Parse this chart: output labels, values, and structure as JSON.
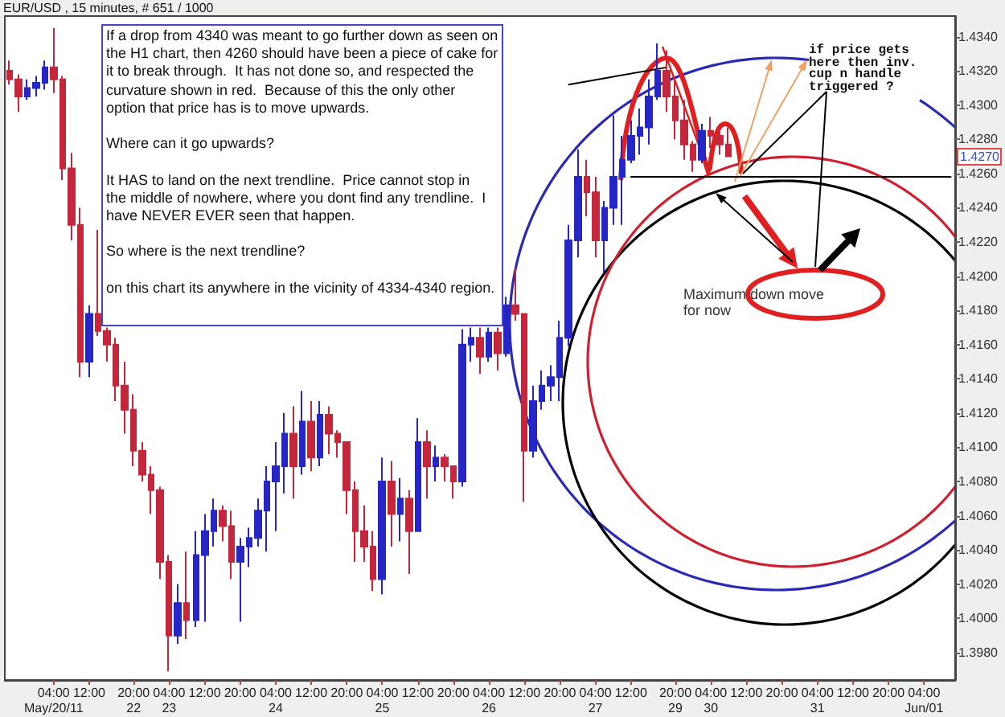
{
  "chart_data": {
    "type": "candlestick",
    "title": "EUR/USD , 15 minutes, # 651 / 1000",
    "categories": [
      null,
      null,
      null,
      null,
      null,
      "04:00\nMay/20/11",
      null,
      null,
      null,
      "12:00",
      null,
      null,
      null,
      null,
      "20:00\n22",
      null,
      null,
      null,
      "04:00\n23",
      null,
      null,
      null,
      "12:00",
      null,
      null,
      null,
      "20:00",
      null,
      null,
      null,
      "04:00\n24",
      null,
      null,
      null,
      "12:00",
      null,
      null,
      null,
      "20:00",
      null,
      null,
      null,
      "04:00\n25",
      null,
      null,
      null,
      "12:00",
      null,
      null,
      null,
      "20:00",
      null,
      null,
      null,
      "04:00\n26",
      null,
      null,
      null,
      "12:00",
      null,
      null,
      null,
      "20:00",
      null,
      null,
      null,
      "04:00\n27",
      null,
      null,
      null,
      "12:00",
      null,
      null,
      null,
      null,
      "20:00\n29",
      null,
      null,
      null,
      "04:00\n30",
      null,
      null,
      null,
      "12:00",
      null,
      null,
      null,
      "20:00",
      null,
      null,
      null,
      "04:00\n31",
      null,
      null,
      null,
      "12:00",
      null,
      null,
      null,
      "20:00",
      null,
      null,
      null,
      "04:00\nJun/01",
      null,
      null,
      null
    ],
    "series": [
      {
        "ohlc": [
          [
            1.432,
            1.4326,
            1.4312,
            1.4315
          ],
          [
            1.4315,
            1.4318,
            1.4296,
            1.4305
          ],
          [
            1.4305,
            1.4315,
            1.4303,
            1.431
          ],
          [
            1.431,
            1.4317,
            1.4305,
            1.4313
          ],
          [
            1.4313,
            1.4326,
            1.4309,
            1.4322
          ],
          [
            1.4322,
            1.4345,
            1.4307,
            1.4315
          ],
          [
            1.4315,
            1.4317,
            1.4256,
            1.4263
          ],
          [
            1.4263,
            1.4272,
            1.4221,
            1.423
          ],
          [
            1.423,
            1.424,
            1.4141,
            1.415
          ],
          [
            1.415,
            1.4183,
            1.4141,
            1.4178
          ],
          [
            1.4178,
            1.4227,
            1.4165,
            1.4168
          ],
          [
            1.4168,
            1.417,
            1.415,
            1.416
          ],
          [
            1.416,
            1.4164,
            1.4127,
            1.4136
          ],
          [
            1.4136,
            1.415,
            1.4108,
            1.4122
          ],
          [
            1.4122,
            1.4131,
            1.4089,
            1.4098
          ],
          [
            1.4098,
            1.4103,
            1.408,
            1.4084
          ],
          [
            1.4084,
            1.4089,
            1.4061,
            1.4075
          ],
          [
            1.4075,
            1.4077,
            1.4023,
            1.4033
          ],
          [
            1.4033,
            1.4037,
            1.3969,
            1.399
          ],
          [
            1.399,
            1.402,
            1.3985,
            1.4009
          ],
          [
            1.4009,
            1.4039,
            1.3988,
            1.3999
          ],
          [
            1.3999,
            1.4051,
            1.3995,
            1.4037
          ],
          [
            1.4037,
            1.4061,
            1.3998,
            1.4051
          ],
          [
            1.4051,
            1.407,
            1.4042,
            1.4063
          ],
          [
            1.4063,
            1.4066,
            1.4045,
            1.4054
          ],
          [
            1.4054,
            1.4063,
            1.4023,
            1.4033
          ],
          [
            1.4033,
            1.4047,
            1.3998,
            1.4042
          ],
          [
            1.4042,
            1.4053,
            1.403,
            1.4047
          ],
          [
            1.4047,
            1.407,
            1.4042,
            1.4063
          ],
          [
            1.4063,
            1.4089,
            1.4039,
            1.408
          ],
          [
            1.408,
            1.4103,
            1.4051,
            1.4089
          ],
          [
            1.4089,
            1.412,
            1.4073,
            1.4108
          ],
          [
            1.4108,
            1.4124,
            1.407,
            1.4089
          ],
          [
            1.4089,
            1.4133,
            1.4084,
            1.4115
          ],
          [
            1.4115,
            1.4127,
            1.4086,
            1.4094
          ],
          [
            1.4094,
            1.4127,
            1.4089,
            1.4119
          ],
          [
            1.4119,
            1.4124,
            1.4096,
            1.4108
          ],
          [
            1.4108,
            1.411,
            1.4094,
            1.4103
          ],
          [
            1.4103,
            1.4103,
            1.4061,
            1.4075
          ],
          [
            1.4075,
            1.408,
            1.4033,
            1.4051
          ],
          [
            1.4051,
            1.4066,
            1.4033,
            1.4042
          ],
          [
            1.4042,
            1.4051,
            1.4016,
            1.4023
          ],
          [
            1.4023,
            1.4094,
            1.4014,
            1.408
          ],
          [
            1.408,
            1.4092,
            1.4042,
            1.4061
          ],
          [
            1.4061,
            1.4082,
            1.4045,
            1.407
          ],
          [
            1.407,
            1.4075,
            1.4026,
            1.4051
          ],
          [
            1.4051,
            1.4117,
            1.4051,
            1.4103
          ],
          [
            1.4103,
            1.411,
            1.407,
            1.4089
          ],
          [
            1.4089,
            1.4101,
            1.408,
            1.4094
          ],
          [
            1.4094,
            1.4096,
            1.408,
            1.4089
          ],
          [
            1.4089,
            1.4089,
            1.407,
            1.408
          ],
          [
            1.408,
            1.4169,
            1.4077,
            1.416
          ],
          [
            1.416,
            1.417,
            1.415,
            1.4164
          ],
          [
            1.4164,
            1.417,
            1.4143,
            1.4153
          ],
          [
            1.4153,
            1.417,
            1.415,
            1.4167
          ],
          [
            1.4167,
            1.417,
            1.4145,
            1.4155
          ],
          [
            1.4155,
            1.4188,
            1.4153,
            1.4183
          ],
          [
            1.4183,
            1.4205,
            1.4174,
            1.4178
          ],
          [
            1.4178,
            1.4178,
            1.4068,
            1.4098
          ],
          [
            1.4098,
            1.4136,
            1.4094,
            1.4127
          ],
          [
            1.4127,
            1.4145,
            1.4122,
            1.4136
          ],
          [
            1.4136,
            1.4148,
            1.4127,
            1.4141
          ],
          [
            1.4141,
            1.4174,
            1.4127,
            1.4164
          ],
          [
            1.4164,
            1.423,
            1.4159,
            1.4221
          ],
          [
            1.4221,
            1.4274,
            1.4211,
            1.4258
          ],
          [
            1.4258,
            1.4268,
            1.4235,
            1.4249
          ],
          [
            1.4249,
            1.4258,
            1.4211,
            1.4221
          ],
          [
            1.4221,
            1.4244,
            1.4202,
            1.424
          ],
          [
            1.424,
            1.4294,
            1.423,
            1.4258
          ],
          [
            1.4258,
            1.4282,
            1.423,
            1.4268
          ],
          [
            1.4268,
            1.4291,
            1.4266,
            1.4282
          ],
          [
            1.4282,
            1.4298,
            1.4271,
            1.4287
          ],
          [
            1.4287,
            1.4315,
            1.4277,
            1.4305
          ],
          [
            1.4305,
            1.4336,
            1.4303,
            1.432
          ],
          [
            1.432,
            1.4332,
            1.4296,
            1.4305
          ],
          [
            1.4305,
            1.4315,
            1.428,
            1.4291
          ],
          [
            1.4291,
            1.4303,
            1.4268,
            1.4277
          ],
          [
            1.4277,
            1.4279,
            1.4261,
            1.4268
          ],
          [
            1.4268,
            1.4289,
            1.4266,
            1.4285
          ],
          [
            1.4285,
            1.4293,
            1.4275,
            1.4282
          ],
          [
            1.4282,
            1.4289,
            1.4271,
            1.4277
          ],
          [
            1.4277,
            1.4287,
            1.427,
            1.427
          ],
          null,
          null,
          null,
          null,
          null,
          null,
          null,
          null,
          null,
          null,
          null,
          null,
          null,
          null,
          null,
          null,
          null,
          null,
          null,
          null,
          null,
          null,
          null,
          null,
          null
        ],
        "colors": [
          "#c4263c",
          "#c4263c",
          "#2626c4",
          "#2626c4",
          "#2626c4",
          "#c4263c",
          "#c4263c",
          "#c4263c",
          "#c4263c",
          "#2626c4",
          "#c4263c",
          "#c4263c",
          "#c4263c",
          "#c4263c",
          "#c4263c",
          "#c4263c",
          "#c4263c",
          "#c4263c",
          "#c4263c",
          "#2626c4",
          "#c4263c",
          "#2626c4",
          "#2626c4",
          "#2626c4",
          "#c4263c",
          "#c4263c",
          "#2626c4",
          "#2626c4",
          "#2626c4",
          "#2626c4",
          "#2626c4",
          "#2626c4",
          "#c4263c",
          "#2626c4",
          "#c4263c",
          "#2626c4",
          "#c4263c",
          "#c4263c",
          "#c4263c",
          "#c4263c",
          "#c4263c",
          "#c4263c",
          "#2626c4",
          "#c4263c",
          "#2626c4",
          "#c4263c",
          "#2626c4",
          "#c4263c",
          "#2626c4",
          "#c4263c",
          "#c4263c",
          "#2626c4",
          "#2626c4",
          "#c4263c",
          "#2626c4",
          "#c4263c",
          "#2626c4",
          "#c4263c",
          "#c4263c",
          "#2626c4",
          "#2626c4",
          "#2626c4",
          "#2626c4",
          "#2626c4",
          "#2626c4",
          "#c4263c",
          "#c4263c",
          "#2626c4",
          "#2626c4",
          "#2626c4",
          "#2626c4",
          "#2626c4",
          "#2626c4",
          "#2626c4",
          "#c4263c",
          "#c4263c",
          "#c4263c",
          "#c4263c",
          "#2626c4",
          "#c4263c",
          "#c4263c",
          "#c4263c",
          null,
          null,
          null,
          null,
          null,
          null,
          null,
          null,
          null,
          null,
          null,
          null,
          null,
          null,
          null,
          null,
          null,
          null,
          null,
          null,
          null,
          null,
          null,
          null,
          null
        ]
      },
      {
        "type": "line",
        "color": "#000000",
        "values": [
          null,
          null,
          null,
          null,
          null,
          null,
          null,
          null,
          null,
          null,
          null,
          null,
          null,
          null,
          null,
          null,
          null,
          null,
          null,
          null,
          null,
          null,
          null,
          null,
          null,
          null,
          null,
          null,
          null,
          null,
          null,
          null,
          null,
          null,
          null,
          null,
          null,
          null,
          null,
          null,
          null,
          null,
          null,
          null,
          null,
          null,
          null,
          null,
          null,
          null,
          null,
          null,
          null,
          null,
          null,
          null,
          null,
          null,
          null,
          null,
          null,
          null,
          null,
          1.4312,
          null,
          null,
          null,
          null,
          null,
          null,
          null,
          null,
          null,
          null,
          1.4322,
          null,
          null,
          null,
          null,
          null,
          null,
          null,
          null,
          null,
          null,
          null,
          null,
          null,
          null,
          null,
          null,
          null,
          null,
          null,
          null,
          null,
          null,
          null,
          null,
          null,
          null,
          null,
          null,
          null,
          null,
          null,
          null
        ]
      },
      {
        "type": "line",
        "color": "#000000",
        "values": [
          null,
          null,
          null,
          null,
          null,
          null,
          null,
          null,
          null,
          null,
          null,
          null,
          null,
          null,
          null,
          null,
          null,
          null,
          null,
          null,
          null,
          null,
          null,
          null,
          null,
          null,
          null,
          null,
          null,
          null,
          null,
          null,
          null,
          null,
          null,
          null,
          null,
          null,
          null,
          null,
          null,
          null,
          null,
          null,
          null,
          null,
          null,
          null,
          null,
          null,
          null,
          null,
          null,
          null,
          null,
          null,
          null,
          null,
          null,
          null,
          null,
          null,
          null,
          null,
          null,
          null,
          null,
          null,
          null,
          null,
          1.4258,
          null,
          null,
          null,
          null,
          null,
          null,
          null,
          null,
          null,
          null,
          null,
          null,
          null,
          null,
          null,
          null,
          null,
          null,
          null,
          null,
          null,
          null,
          null,
          null,
          null,
          null,
          null,
          null,
          null,
          null,
          null,
          null,
          null,
          null,
          null,
          1.4258
        ]
      }
    ],
    "ylim": [
      1.3964,
      1.4352
    ],
    "yticks": [
      {
        "value": 1.398,
        "label": "1.3980"
      },
      {
        "value": 1.4,
        "label": "1.4000"
      },
      {
        "value": 1.402,
        "label": "1.4020"
      },
      {
        "value": 1.404,
        "label": "1.4040"
      },
      {
        "value": 1.406,
        "label": "1.4060"
      },
      {
        "value": 1.408,
        "label": "1.4080"
      },
      {
        "value": 1.41,
        "label": "1.4100"
      },
      {
        "value": 1.412,
        "label": "1.4120"
      },
      {
        "value": 1.414,
        "label": "1.4140"
      },
      {
        "value": 1.416,
        "label": "1.4160"
      },
      {
        "value": 1.418,
        "label": "1.4180"
      },
      {
        "value": 1.42,
        "label": "1.4200"
      },
      {
        "value": 1.422,
        "label": "1.4220"
      },
      {
        "value": 1.424,
        "label": "1.4240"
      },
      {
        "value": 1.426,
        "label": "1.4260"
      },
      {
        "value": 1.428,
        "label": "1.4280"
      },
      {
        "value": 1.43,
        "label": "1.4300"
      },
      {
        "value": 1.432,
        "label": "1.4320"
      },
      {
        "value": 1.434,
        "label": "1.4340"
      }
    ],
    "annotations": [
      "If a drop from 4340 was meant to go further down as seen on\nthe H1 chart, then 4260 should have been a piece of cake for\nit to break through.  It has not done so, and respected the\ncurvature shown in red.  Because of this the only other\noption that price has is to move upwards.\n\nWhere can it go upwards?\n\nIt HAS to land on the next trendline.  Price cannot stop in\nthe middle of nowhere, where you dont find any trendline.  I\nhave NEVER EVER seen that happen.\n\nSo where is the next trendline?\n\non this chart its anywhere in the vicinity of 4334-4340 region.",
      "if price gets\nhere then inv.\ncup n handle\ntriggered ?",
      "Maximum down move\nfor now",
      {
        "text": "1.4270",
        "y": 1.427
      }
    ]
  }
}
